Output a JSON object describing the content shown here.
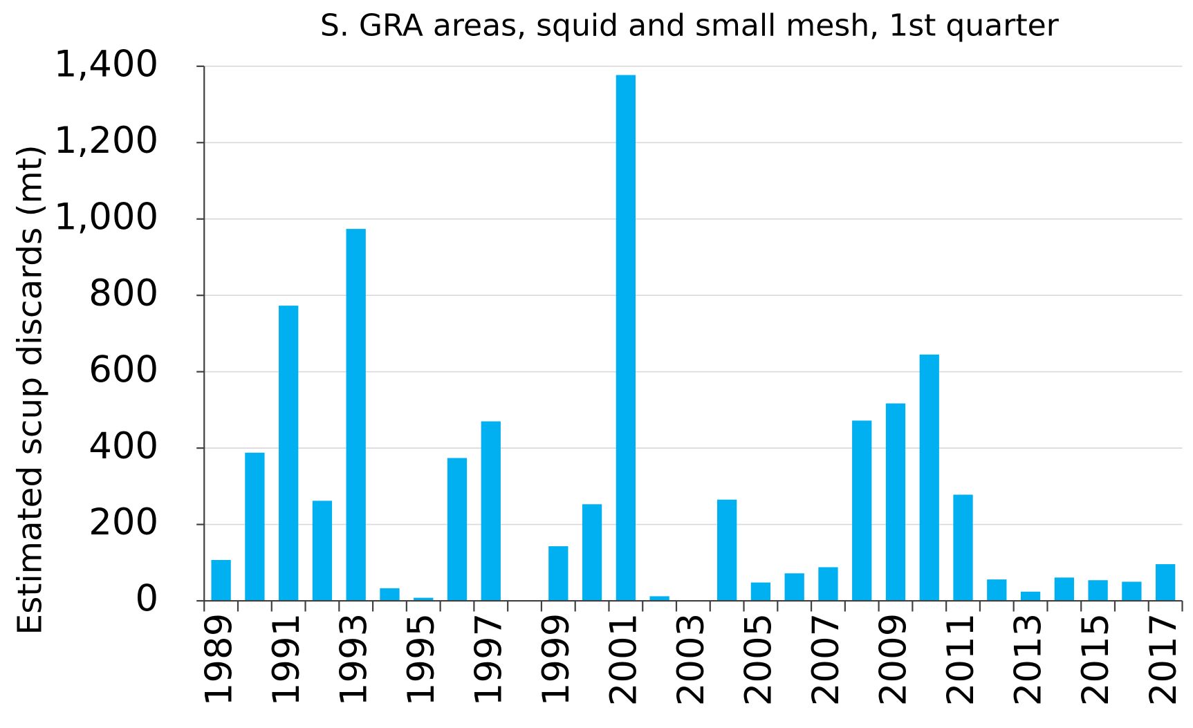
{
  "chart_data": {
    "type": "bar",
    "title": "S. GRA areas, squid and small mesh, 1st quarter",
    "ylabel": "Estimated scup discards (mt)",
    "categories": [
      "1989",
      null,
      "1991",
      null,
      "1993",
      null,
      "1995",
      null,
      "1997",
      null,
      "1999",
      null,
      "2001",
      null,
      "2003",
      null,
      "2005",
      null,
      "2007",
      null,
      "2009",
      null,
      "2011",
      null,
      "2013",
      null,
      "2015",
      null,
      "2017"
    ],
    "values": [
      107,
      388,
      773,
      262,
      974,
      33,
      8,
      374,
      470,
      0,
      143,
      253,
      1377,
      12,
      0,
      265,
      48,
      72,
      88,
      472,
      517,
      645,
      278,
      56,
      24,
      61,
      54,
      50,
      96
    ],
    "color": "#00b0f0",
    "ylim": [
      0,
      1400
    ],
    "yticks": [
      0,
      200,
      400,
      600,
      800,
      {
        "value": 1000,
        "label": "1,000"
      },
      {
        "value": 1200,
        "label": "1,200"
      },
      {
        "value": 1400,
        "label": "1,400"
      }
    ],
    "grid": true
  }
}
